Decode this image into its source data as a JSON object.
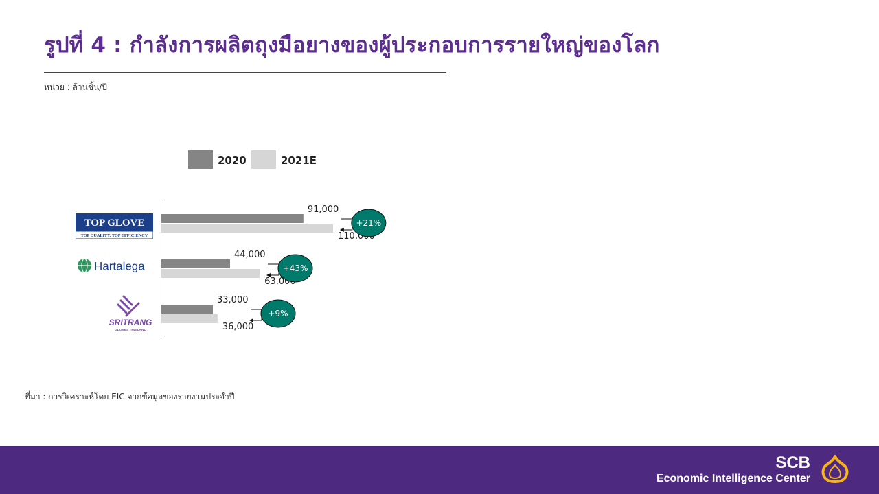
{
  "page": {
    "title": "รูปที่ 4 : กำลังการผลิตถุงมือยางของผู้ประกอบการรายใหญ่ของโลก",
    "unit": "หน่วย : ล้านชิ้น/ปี",
    "source": "ที่มา : การวิเคราะห์โดย EIC จากข้อมูลของรายงานประจำปี"
  },
  "colors": {
    "title": "#5b2d8e",
    "bar_2020": "#858585",
    "bar_2021E": "#d6d6d6",
    "badge": "#007a6a",
    "footer": "#4d2a7f",
    "brand_icon": "#f5b21b"
  },
  "logos": {
    "topglove": {
      "name": "TOP GLOVE",
      "tagline": "TOP QUALITY, TOP EFFICIENCY"
    },
    "hartalega": {
      "name": "Hartalega"
    },
    "sritrang": {
      "name": "SRITRANG",
      "sub": "GLOVES THAILAND"
    }
  },
  "chart_data": {
    "type": "bar",
    "orientation": "horizontal",
    "categories": [
      "Top Glove",
      "Hartalega",
      "Sri Trang"
    ],
    "series": [
      {
        "name": "2020",
        "values": [
          91000,
          44000,
          33000
        ]
      },
      {
        "name": "2021E",
        "values": [
          110000,
          63000,
          36000
        ]
      }
    ],
    "value_labels": {
      "2020": [
        "91,000",
        "44,000",
        "33,000"
      ],
      "2021E": [
        "110,000",
        "63,000",
        "36,000"
      ]
    },
    "growth_labels": [
      "+21%",
      "+43%",
      "+9%"
    ],
    "xlim": [
      0,
      110000
    ],
    "legend_position": "top",
    "grid": false
  },
  "footer": {
    "brand": "SCB",
    "center": "Economic Intelligence Center",
    "icon": "scb-emblem-icon"
  }
}
